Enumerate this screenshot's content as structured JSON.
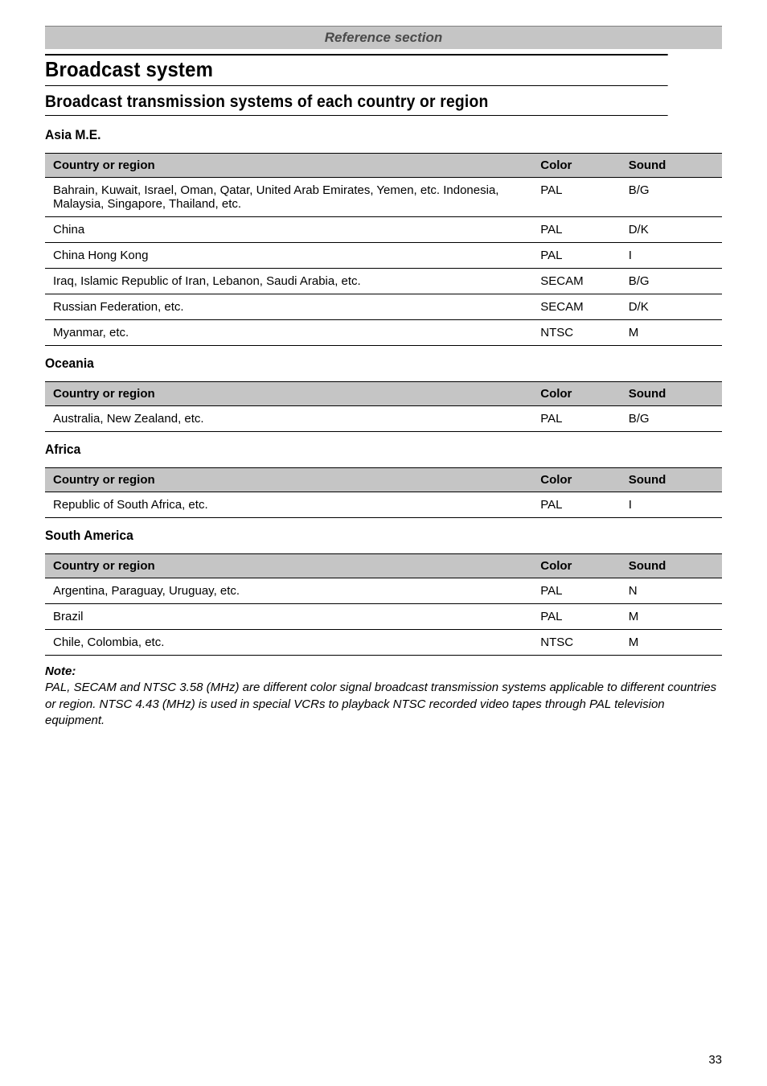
{
  "page": {
    "ref_header": "Reference section",
    "title": "Broadcast system",
    "subtitle": "Broadcast transmission systems of each country or region",
    "page_number": "33"
  },
  "column_headers": {
    "region": "Country or region",
    "color": "Color",
    "sound": "Sound"
  },
  "sections": [
    {
      "label": "Asia M.E.",
      "rows": [
        {
          "region": "Bahrain, Kuwait, Israel, Oman, Qatar, United Arab Emirates, Yemen, etc. Indonesia, Malaysia,  Singapore, Thailand, etc.",
          "color": "PAL",
          "sound": "B/G"
        },
        {
          "region": "China",
          "color": "PAL",
          "sound": "D/K"
        },
        {
          "region": "China Hong Kong",
          "color": "PAL",
          "sound": "I"
        },
        {
          "region": "Iraq, Islamic Republic of Iran, Lebanon, Saudi Arabia, etc.",
          "color": "SECAM",
          "sound": "B/G"
        },
        {
          "region": "Russian Federation, etc.",
          "color": "SECAM",
          "sound": "D/K"
        },
        {
          "region": "Myanmar, etc.",
          "color": "NTSC",
          "sound": "M"
        }
      ]
    },
    {
      "label": "Oceania",
      "rows": [
        {
          "region": "Australia, New Zealand, etc.",
          "color": "PAL",
          "sound": "B/G"
        }
      ]
    },
    {
      "label": "Africa",
      "rows": [
        {
          "region": "Republic of South Africa, etc.",
          "color": "PAL",
          "sound": "I"
        }
      ]
    },
    {
      "label": "South America",
      "rows": [
        {
          "region": "Argentina, Paraguay, Uruguay, etc.",
          "color": "PAL",
          "sound": "N"
        },
        {
          "region": "Brazil",
          "color": "PAL",
          "sound": "M"
        },
        {
          "region": "Chile, Colombia, etc.",
          "color": "NTSC",
          "sound": "M"
        }
      ]
    }
  ],
  "note": {
    "heading": "Note:",
    "body": "PAL, SECAM and NTSC 3.58 (MHz) are different color signal broadcast transmission systems applicable to different countries or region. NTSC 4.43 (MHz) is used in special VCRs to playback NTSC recorded video tapes through PAL television equipment."
  },
  "style": {
    "background_color": "#ffffff",
    "header_bg": "#c5c5c5",
    "text_color": "#000000",
    "border_color": "#000000",
    "body_fontsize": 15,
    "h1_fontsize": 26,
    "h2_fontsize": 21,
    "section_label_fontsize": 17
  }
}
